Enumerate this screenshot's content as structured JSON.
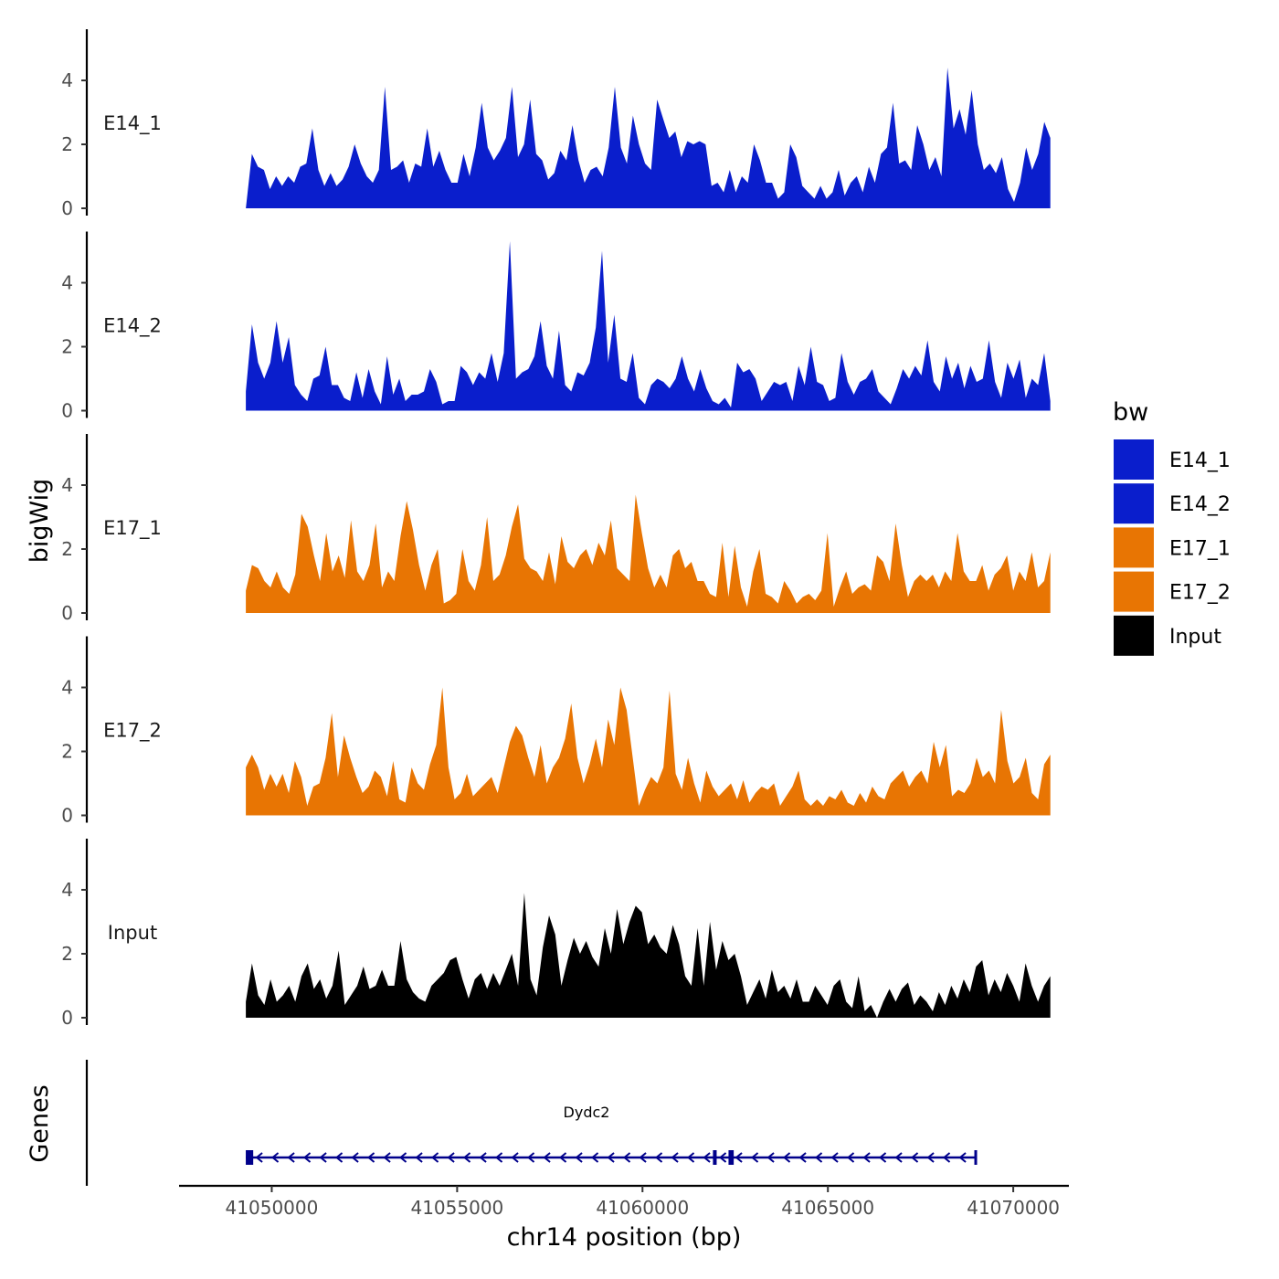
{
  "chart_data": {
    "type": "area",
    "ylabel_tracks": "bigWig",
    "ylabel_genes": "Genes",
    "xlabel": "chr14 position (bp)",
    "xlim": [
      41047500,
      41071500
    ],
    "x_ticks": [
      41050000,
      41055000,
      41060000,
      41065000,
      41070000
    ],
    "x_tick_labels": [
      "41050000",
      "41055000",
      "41060000",
      "41065000",
      "41070000"
    ],
    "ylim": [
      0,
      5.6
    ],
    "y_ticks": [
      0,
      2,
      4
    ],
    "y_tick_labels": [
      "0",
      "2",
      "4"
    ],
    "legend": {
      "title": "bw",
      "placement": "right",
      "entries": [
        {
          "label": "E14_1",
          "color": "#0A1ECC"
        },
        {
          "label": "E14_2",
          "color": "#0A1ECC"
        },
        {
          "label": "E17_1",
          "color": "#E87503"
        },
        {
          "label": "E17_2",
          "color": "#E87503"
        },
        {
          "label": "Input",
          "color": "#000000"
        }
      ]
    },
    "x_start": 41049300,
    "x_end": 41071000,
    "series": [
      {
        "name": "E14_1",
        "color": "#0A1ECC",
        "values": [
          0,
          1.7,
          1.3,
          1.2,
          0.6,
          1.0,
          0.7,
          1.0,
          0.8,
          1.3,
          1.4,
          2.5,
          1.2,
          0.7,
          1.1,
          0.7,
          0.9,
          1.3,
          2.0,
          1.4,
          1.0,
          0.8,
          1.2,
          3.8,
          1.2,
          1.3,
          1.5,
          0.8,
          1.4,
          1.3,
          2.5,
          1.3,
          1.8,
          1.2,
          0.8,
          0.8,
          1.7,
          1.0,
          1.9,
          3.3,
          1.9,
          1.5,
          1.8,
          2.2,
          3.8,
          1.6,
          2.0,
          3.4,
          1.7,
          1.5,
          0.9,
          1.1,
          1.8,
          1.5,
          2.6,
          1.5,
          0.8,
          1.2,
          1.3,
          1.0,
          1.9,
          3.8,
          1.9,
          1.4,
          2.9,
          2.0,
          1.4,
          1.2,
          3.4,
          2.8,
          2.2,
          2.4,
          1.6,
          2.1,
          2.0,
          2.1,
          2.0,
          0.7,
          0.8,
          0.5,
          1.2,
          0.5,
          1.0,
          0.8,
          2.0,
          1.5,
          0.8,
          0.8,
          0.3,
          0.5,
          2.0,
          1.6,
          0.7,
          0.5,
          0.3,
          0.7,
          0.3,
          0.5,
          1.2,
          0.4,
          0.8,
          1.0,
          0.5,
          1.3,
          0.8,
          1.7,
          1.9,
          3.3,
          1.4,
          1.5,
          1.2,
          2.6,
          2.0,
          1.2,
          1.6,
          1.0,
          4.4,
          2.5,
          3.1,
          2.3,
          3.7,
          2.0,
          1.2,
          1.4,
          1.1,
          1.6,
          0.6,
          0.2,
          0.8,
          1.9,
          1.2,
          1.7,
          2.7,
          2.2
        ]
      },
      {
        "name": "E14_2",
        "color": "#0A1ECC",
        "values": [
          0.6,
          2.7,
          1.5,
          1.0,
          1.5,
          2.8,
          1.5,
          2.3,
          0.8,
          0.5,
          0.3,
          1.0,
          1.1,
          2.0,
          0.8,
          0.8,
          0.4,
          0.3,
          1.2,
          0.4,
          1.3,
          0.6,
          0.2,
          1.7,
          0.5,
          1.0,
          0.3,
          0.5,
          0.5,
          0.6,
          1.3,
          0.9,
          0.2,
          0.3,
          0.3,
          1.4,
          1.2,
          0.8,
          1.2,
          1.0,
          1.8,
          0.9,
          1.8,
          5.3,
          1.0,
          1.2,
          1.3,
          1.7,
          2.8,
          1.4,
          1.0,
          2.5,
          0.8,
          0.6,
          1.2,
          1.1,
          1.5,
          2.6,
          5.0,
          1.5,
          3.0,
          1.0,
          0.9,
          1.8,
          0.4,
          0.2,
          0.8,
          1.0,
          0.9,
          0.7,
          1.0,
          1.7,
          1.0,
          0.6,
          1.3,
          0.7,
          0.3,
          0.2,
          0.4,
          0.1,
          1.5,
          1.2,
          1.3,
          1.0,
          0.3,
          0.6,
          0.9,
          0.8,
          0.9,
          0.3,
          1.4,
          0.8,
          2.0,
          0.9,
          0.8,
          0.3,
          0.4,
          1.8,
          0.9,
          0.5,
          0.9,
          1.0,
          1.3,
          0.6,
          0.4,
          0.2,
          0.7,
          1.3,
          1.0,
          1.4,
          1.1,
          2.2,
          0.9,
          0.6,
          1.7,
          1.0,
          1.5,
          0.7,
          1.4,
          0.9,
          1.0,
          2.2,
          0.9,
          0.4,
          1.5,
          1.0,
          1.6,
          0.4,
          1.0,
          0.8,
          1.8,
          0.3
        ]
      },
      {
        "name": "E17_1",
        "color": "#E87503",
        "values": [
          0.7,
          1.5,
          1.4,
          1.0,
          0.8,
          1.3,
          0.8,
          0.6,
          1.2,
          3.1,
          2.7,
          1.8,
          1.0,
          2.5,
          1.3,
          1.8,
          1.1,
          2.9,
          1.3,
          1.0,
          1.5,
          2.8,
          0.8,
          1.3,
          1.0,
          2.4,
          3.5,
          2.6,
          1.5,
          0.7,
          1.5,
          2.0,
          0.3,
          0.4,
          0.6,
          2.0,
          1.0,
          0.7,
          1.5,
          3.0,
          1.0,
          1.2,
          1.8,
          2.7,
          3.4,
          1.7,
          1.4,
          1.3,
          1.0,
          1.9,
          0.9,
          2.4,
          1.6,
          1.4,
          1.8,
          2.0,
          1.5,
          2.2,
          1.8,
          2.9,
          1.4,
          1.2,
          1.0,
          3.7,
          2.5,
          1.4,
          0.8,
          1.2,
          0.8,
          1.8,
          2.0,
          1.4,
          1.6,
          1.0,
          1.0,
          0.6,
          0.5,
          2.2,
          0.5,
          2.1,
          0.8,
          0.2,
          1.3,
          2.0,
          0.6,
          0.5,
          0.3,
          1.0,
          0.7,
          0.3,
          0.5,
          0.6,
          0.4,
          0.7,
          2.5,
          0.2,
          0.8,
          1.3,
          0.6,
          0.8,
          0.9,
          0.7,
          1.8,
          1.6,
          1.0,
          2.8,
          1.5,
          0.5,
          1.0,
          1.2,
          1.0,
          1.2,
          0.8,
          1.3,
          1.0,
          2.5,
          1.3,
          1.0,
          1.0,
          1.5,
          0.7,
          1.2,
          1.4,
          1.8,
          0.7,
          1.3,
          1.0,
          1.9,
          0.8,
          1.0,
          1.9
        ]
      },
      {
        "name": "E17_2",
        "color": "#E87503",
        "values": [
          1.5,
          1.9,
          1.5,
          0.8,
          1.3,
          0.9,
          1.3,
          0.7,
          1.7,
          1.2,
          0.3,
          0.9,
          1.0,
          1.8,
          3.2,
          1.2,
          2.5,
          1.8,
          1.2,
          0.7,
          0.9,
          1.4,
          1.2,
          0.6,
          1.7,
          0.5,
          0.4,
          1.5,
          1.0,
          0.8,
          1.6,
          2.2,
          4.0,
          1.5,
          0.5,
          0.7,
          1.3,
          0.6,
          0.8,
          1.0,
          1.2,
          0.7,
          1.5,
          2.3,
          2.8,
          2.5,
          1.8,
          1.2,
          2.2,
          1.0,
          1.5,
          1.8,
          2.4,
          3.5,
          1.8,
          1.0,
          1.6,
          2.4,
          1.5,
          3.0,
          2.2,
          4.0,
          3.3,
          1.8,
          0.3,
          0.8,
          1.2,
          1.0,
          1.5,
          3.9,
          1.3,
          0.8,
          1.8,
          1.0,
          0.4,
          1.4,
          0.9,
          0.6,
          0.8,
          1.0,
          0.5,
          1.1,
          0.4,
          0.7,
          0.9,
          0.8,
          1.0,
          0.3,
          0.6,
          0.9,
          1.4,
          0.5,
          0.3,
          0.5,
          0.3,
          0.6,
          0.5,
          0.8,
          0.4,
          0.3,
          0.7,
          0.4,
          0.9,
          0.6,
          0.5,
          1.0,
          1.2,
          1.4,
          0.9,
          1.2,
          1.4,
          1.0,
          2.3,
          1.5,
          2.2,
          0.6,
          0.8,
          0.7,
          1.0,
          1.8,
          1.2,
          1.4,
          1.0,
          3.3,
          1.7,
          1.0,
          1.2,
          1.8,
          0.7,
          0.5,
          1.6,
          1.9
        ]
      },
      {
        "name": "Input",
        "color": "#000000",
        "values": [
          0.5,
          1.7,
          0.7,
          0.4,
          1.2,
          0.5,
          0.7,
          1.0,
          0.5,
          1.3,
          1.7,
          0.9,
          1.2,
          0.6,
          1.0,
          2.1,
          0.4,
          0.7,
          1.0,
          1.6,
          0.9,
          1.0,
          1.5,
          1.0,
          1.0,
          2.4,
          1.2,
          0.8,
          0.6,
          0.5,
          1.0,
          1.2,
          1.4,
          1.8,
          1.9,
          1.2,
          0.6,
          1.2,
          1.4,
          0.9,
          1.4,
          1.0,
          1.5,
          2.0,
          1.0,
          3.9,
          1.2,
          0.7,
          2.2,
          3.2,
          2.6,
          1.0,
          1.8,
          2.5,
          2.0,
          2.4,
          1.9,
          1.6,
          2.8,
          2.0,
          3.4,
          2.3,
          3.0,
          3.5,
          3.3,
          2.3,
          2.6,
          2.2,
          2.0,
          2.9,
          2.3,
          1.3,
          1.0,
          2.8,
          1.0,
          3.0,
          1.5,
          2.4,
          1.8,
          2.0,
          1.3,
          0.4,
          0.8,
          1.2,
          0.6,
          1.5,
          0.8,
          1.0,
          0.6,
          1.2,
          0.5,
          0.5,
          1.0,
          0.7,
          0.4,
          1.0,
          1.2,
          0.5,
          0.3,
          1.3,
          0.2,
          0.4,
          0.0,
          0.5,
          0.9,
          0.5,
          0.9,
          1.1,
          0.4,
          0.7,
          0.5,
          0.2,
          0.8,
          0.4,
          1.0,
          0.6,
          1.2,
          0.8,
          1.6,
          1.8,
          0.7,
          1.2,
          0.8,
          1.4,
          1.0,
          0.5,
          1.7,
          1.0,
          0.5,
          1.0,
          1.3
        ]
      }
    ],
    "gene": {
      "name": "Dydc2",
      "start": 41049300,
      "end": 41069000,
      "strand": "-",
      "color": "#00008B",
      "exons": [
        [
          41049300,
          41049500
        ],
        [
          41061900,
          41062000
        ],
        [
          41062320,
          41062460
        ],
        [
          41068950,
          41069000
        ]
      ]
    }
  }
}
